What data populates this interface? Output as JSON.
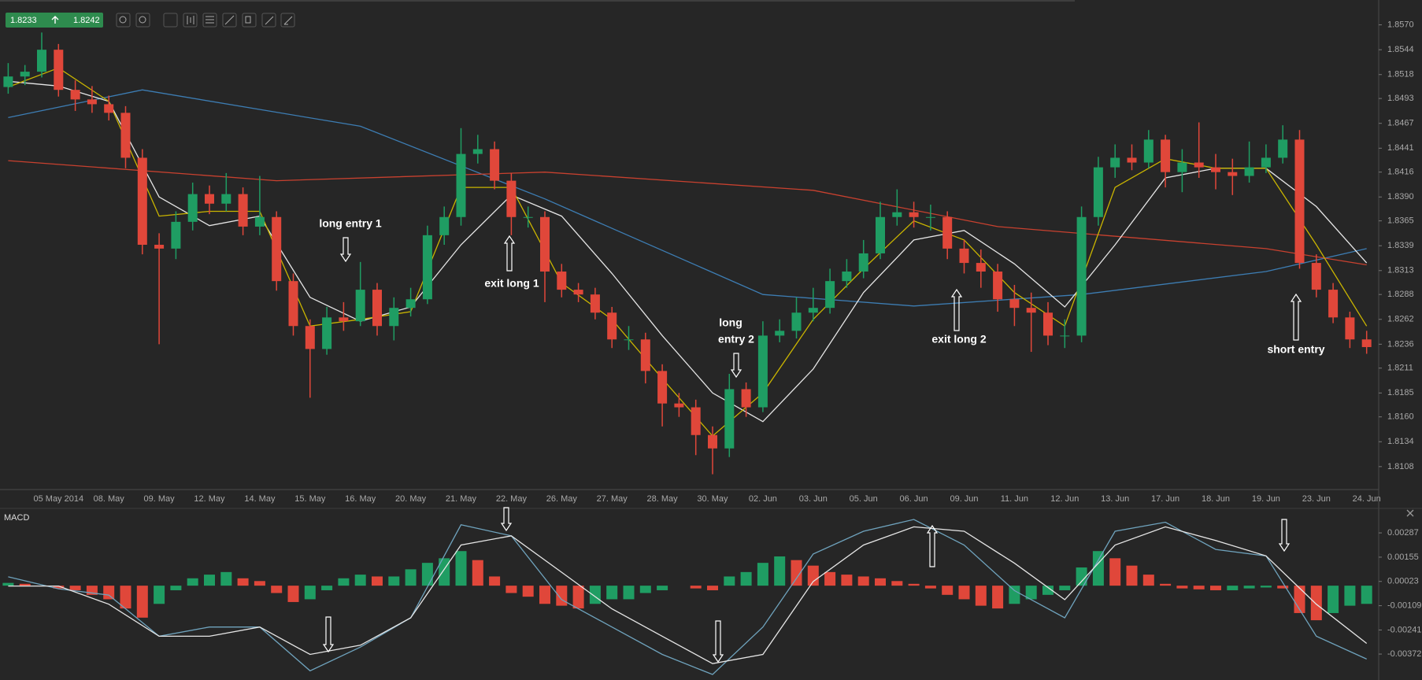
{
  "toolbar": {
    "bid": "1.8233",
    "ask": "1.8242"
  },
  "chart_data": [
    {
      "type": "candlestick",
      "categories": [
        null,
        null,
        null,
        "05 May 2014",
        null,
        null,
        "08. May",
        null,
        null,
        "09. May",
        null,
        null,
        "12. May",
        null,
        null,
        "14. May",
        null,
        null,
        "15. May",
        null,
        null,
        "16. May",
        null,
        null,
        "20. May",
        null,
        null,
        "21. May",
        null,
        null,
        "22. May",
        null,
        null,
        "26. May",
        null,
        null,
        "27. May",
        null,
        null,
        "28. May",
        null,
        null,
        "30. May",
        null,
        null,
        "02. Jun",
        null,
        null,
        "03. Jun",
        null,
        null,
        "05. Jun",
        null,
        null,
        "06. Jun",
        null,
        null,
        "09. Jun",
        null,
        null,
        "11. Jun",
        null,
        null,
        "12. Jun",
        null,
        null,
        "13. Jun",
        null,
        null,
        "17. Jun",
        null,
        null,
        "18. Jun",
        null,
        null,
        "19. Jun",
        null,
        null,
        "23. Jun",
        null,
        null,
        "24. Jun"
      ],
      "ohlc": [
        [
          1.8505,
          1.853,
          1.8498,
          1.8516
        ],
        [
          1.8516,
          1.8528,
          1.8507,
          1.8521
        ],
        [
          1.8521,
          1.8562,
          1.8515,
          1.8544
        ],
        [
          1.8544,
          1.855,
          1.8495,
          1.8502
        ],
        [
          1.8502,
          1.8512,
          1.848,
          1.8492
        ],
        [
          1.8492,
          1.8506,
          1.8478,
          1.8487
        ],
        [
          1.8487,
          1.8496,
          1.847,
          1.8478
        ],
        [
          1.8478,
          1.8485,
          1.842,
          1.8431
        ],
        [
          1.8431,
          1.844,
          1.833,
          1.834
        ],
        [
          1.834,
          1.8352,
          1.8236,
          1.8336
        ],
        [
          1.8336,
          1.8375,
          1.8325,
          1.8364
        ],
        [
          1.8364,
          1.8405,
          1.8355,
          1.8393
        ],
        [
          1.8393,
          1.8402,
          1.8372,
          1.8383
        ],
        [
          1.8383,
          1.8415,
          1.8375,
          1.8393
        ],
        [
          1.8393,
          1.84,
          1.835,
          1.8359
        ],
        [
          1.8359,
          1.8412,
          1.835,
          1.8369
        ],
        [
          1.8369,
          1.8375,
          1.8292,
          1.8302
        ],
        [
          1.8302,
          1.831,
          1.8245,
          1.8255
        ],
        [
          1.8255,
          1.8262,
          1.818,
          1.8231
        ],
        [
          1.8231,
          1.8275,
          1.8225,
          1.8264
        ],
        [
          1.8264,
          1.828,
          1.825,
          1.826
        ],
        [
          1.826,
          1.8322,
          1.8255,
          1.8293
        ],
        [
          1.8293,
          1.83,
          1.8245,
          1.8255
        ],
        [
          1.8255,
          1.8285,
          1.824,
          1.8274
        ],
        [
          1.8274,
          1.8295,
          1.8265,
          1.8283
        ],
        [
          1.8283,
          1.836,
          1.8278,
          1.835
        ],
        [
          1.835,
          1.838,
          1.834,
          1.8369
        ],
        [
          1.8369,
          1.8462,
          1.836,
          1.8435
        ],
        [
          1.8435,
          1.8455,
          1.8425,
          1.844
        ],
        [
          1.844,
          1.8448,
          1.8398,
          1.8407
        ],
        [
          1.8407,
          1.8415,
          1.835,
          1.8369
        ],
        [
          1.8369,
          1.838,
          1.8358,
          1.8369
        ],
        [
          1.8369,
          1.8375,
          1.828,
          1.8312
        ],
        [
          1.8312,
          1.832,
          1.8285,
          1.8293
        ],
        [
          1.8293,
          1.83,
          1.828,
          1.8288
        ],
        [
          1.8288,
          1.8295,
          1.8262,
          1.8269
        ],
        [
          1.8269,
          1.8275,
          1.8232,
          1.8241
        ],
        [
          1.8241,
          1.8255,
          1.823,
          1.8241
        ],
        [
          1.8241,
          1.8248,
          1.8195,
          1.8208
        ],
        [
          1.8208,
          1.8215,
          1.815,
          1.8174
        ],
        [
          1.8174,
          1.8185,
          1.816,
          1.817
        ],
        [
          1.817,
          1.8178,
          1.812,
          1.8141
        ],
        [
          1.8141,
          1.815,
          1.81,
          1.8127
        ],
        [
          1.8127,
          1.8205,
          1.8118,
          1.8189
        ],
        [
          1.8189,
          1.8196,
          1.816,
          1.817
        ],
        [
          1.817,
          1.826,
          1.8165,
          1.8245
        ],
        [
          1.8245,
          1.8262,
          1.8238,
          1.825
        ],
        [
          1.825,
          1.8285,
          1.8242,
          1.8269
        ],
        [
          1.8269,
          1.8295,
          1.826,
          1.8274
        ],
        [
          1.8274,
          1.8315,
          1.8268,
          1.8302
        ],
        [
          1.8302,
          1.8325,
          1.8295,
          1.8312
        ],
        [
          1.8312,
          1.8345,
          1.8305,
          1.8331
        ],
        [
          1.8331,
          1.8385,
          1.8325,
          1.8369
        ],
        [
          1.8369,
          1.8398,
          1.836,
          1.8374
        ],
        [
          1.8374,
          1.8385,
          1.8358,
          1.8369
        ],
        [
          1.8369,
          1.8382,
          1.8355,
          1.8369
        ],
        [
          1.8369,
          1.8375,
          1.8325,
          1.8336
        ],
        [
          1.8336,
          1.8345,
          1.831,
          1.8321
        ],
        [
          1.8321,
          1.8335,
          1.8295,
          1.8312
        ],
        [
          1.8312,
          1.832,
          1.827,
          1.8283
        ],
        [
          1.8283,
          1.8298,
          1.8255,
          1.8274
        ],
        [
          1.8274,
          1.829,
          1.8228,
          1.8269
        ],
        [
          1.8269,
          1.828,
          1.8235,
          1.8245
        ],
        [
          1.8245,
          1.8262,
          1.8232,
          1.8245
        ],
        [
          1.8245,
          1.838,
          1.8238,
          1.8369
        ],
        [
          1.8369,
          1.8432,
          1.836,
          1.8421
        ],
        [
          1.8421,
          1.8445,
          1.841,
          1.8431
        ],
        [
          1.8431,
          1.8445,
          1.8418,
          1.8426
        ],
        [
          1.8426,
          1.846,
          1.842,
          1.845
        ],
        [
          1.845,
          1.8455,
          1.84,
          1.8416
        ],
        [
          1.8416,
          1.844,
          1.8395,
          1.8426
        ],
        [
          1.8426,
          1.8468,
          1.841,
          1.8421
        ],
        [
          1.8421,
          1.8435,
          1.8398,
          1.8416
        ],
        [
          1.8416,
          1.843,
          1.8392,
          1.8412
        ],
        [
          1.8412,
          1.8448,
          1.8405,
          1.8421
        ],
        [
          1.8421,
          1.8445,
          1.8415,
          1.8431
        ],
        [
          1.8431,
          1.8465,
          1.8425,
          1.845
        ],
        [
          1.845,
          1.846,
          1.8315,
          1.8321
        ],
        [
          1.8321,
          1.833,
          1.8285,
          1.8293
        ],
        [
          1.8293,
          1.83,
          1.8258,
          1.8264
        ],
        [
          1.8264,
          1.827,
          1.8232,
          1.8241
        ],
        [
          1.8241,
          1.825,
          1.8226,
          1.8233
        ]
      ],
      "up_color": "#1f9d63",
      "down_color": "#e0473a",
      "ylim": [
        1.8084,
        1.8596
      ],
      "yticks": [
        {
          "value": 1.857,
          "label": "1.8570"
        },
        1.8544,
        1.8518,
        1.8493,
        1.8467,
        1.8441,
        1.8416,
        {
          "value": 1.839,
          "label": "1.8390"
        },
        1.8365,
        1.8339,
        1.8313,
        1.8288,
        1.8262,
        1.8236,
        1.8211,
        1.8185,
        {
          "value": 1.816,
          "label": "1.8160"
        },
        1.8134,
        1.8108
      ],
      "series": [
        {
          "color": "#3d7db3",
          "x": [
            0,
            8,
            21,
            32,
            45,
            54,
            64,
            75,
            81
          ],
          "values": [
            1.8473,
            1.8502,
            1.8464,
            1.8388,
            1.8288,
            1.8276,
            1.8288,
            1.8312,
            1.8336
          ]
        },
        {
          "color": "#c8412f",
          "x": [
            0,
            16,
            32,
            48,
            59,
            75,
            81
          ],
          "values": [
            1.8428,
            1.8407,
            1.8416,
            1.8397,
            1.8359,
            1.8336,
            1.8319
          ]
        },
        {
          "color": "#e6e6e6",
          "x": [
            0,
            3,
            6,
            9,
            12,
            15,
            18,
            21,
            24,
            27,
            30,
            33,
            36,
            39,
            42,
            45,
            48,
            51,
            54,
            57,
            60,
            63,
            66,
            69,
            72,
            75,
            78,
            81
          ],
          "values": [
            1.8511,
            1.8506,
            1.849,
            1.839,
            1.836,
            1.837,
            1.8285,
            1.826,
            1.8275,
            1.834,
            1.8392,
            1.837,
            1.831,
            1.8245,
            1.8185,
            1.8155,
            1.821,
            1.829,
            1.8345,
            1.8355,
            1.832,
            1.8275,
            1.834,
            1.841,
            1.842,
            1.842,
            1.838,
            1.8321
          ]
        },
        {
          "color": "#c9b400",
          "x": [
            0,
            3,
            6,
            9,
            12,
            15,
            18,
            21,
            24,
            27,
            30,
            33,
            36,
            39,
            42,
            45,
            48,
            51,
            54,
            57,
            60,
            63,
            66,
            69,
            72,
            75,
            78,
            81
          ],
          "values": [
            1.8505,
            1.8525,
            1.849,
            1.837,
            1.8375,
            1.8375,
            1.8255,
            1.8262,
            1.827,
            1.84,
            1.84,
            1.83,
            1.8262,
            1.82,
            1.814,
            1.8185,
            1.8262,
            1.8315,
            1.8365,
            1.8345,
            1.829,
            1.8255,
            1.84,
            1.843,
            1.842,
            1.842,
            1.834,
            1.8255
          ]
        }
      ],
      "annotations": [
        "long entry 1",
        "exit long 1",
        "long",
        "entry 2",
        "exit long 2",
        "short entry"
      ]
    },
    {
      "type": "macd",
      "title": "MACD",
      "histogram": [
        0.00015,
        0.0001,
        0,
        -0.00015,
        -0.00025,
        -0.0005,
        -0.00074,
        -0.00124,
        -0.00174,
        -0.00099,
        -0.00025,
        0.0004,
        0.0006,
        0.00074,
        0.0004,
        0.00025,
        -0.0004,
        -0.00089,
        -0.00074,
        -0.00025,
        0.0004,
        0.0006,
        0.0005,
        0.0005,
        0.00089,
        0.00124,
        0.00149,
        0.00188,
        0.00139,
        0.0005,
        -0.0004,
        -0.0006,
        -0.00099,
        -0.00109,
        -0.00124,
        -0.00099,
        -0.00074,
        -0.00074,
        -0.0004,
        -0.00025,
        0,
        -0.00015,
        -0.00025,
        0.0005,
        0.00074,
        0.00124,
        0.00159,
        0.00139,
        0.00109,
        0.00074,
        0.0006,
        0.0005,
        0.0004,
        0.00025,
        0.0001,
        -0.00015,
        -0.0005,
        -0.00074,
        -0.00109,
        -0.00124,
        -0.00099,
        -0.00074,
        -0.0005,
        -0.00025,
        0.00099,
        0.00188,
        0.00149,
        0.00109,
        0.0006,
        0.0001,
        -0.00015,
        -0.0002,
        -0.00025,
        -0.00025,
        -0.00015,
        -0.0001,
        -0.00015,
        -0.00149,
        -0.00188,
        -0.00149,
        -0.00109,
        -0.00099
      ],
      "up_color": "#1f9d63",
      "down_color": "#e0473a",
      "ylim": [
        -0.00513,
        0.0042
      ],
      "yticks": [
        0.00287,
        0.00155,
        0.00023,
        -0.00109,
        -0.00241,
        -0.00372
      ],
      "series": [
        {
          "color": "#6fa3bd",
          "x": [
            0,
            3,
            6,
            9,
            12,
            15,
            18,
            21,
            24,
            27,
            30,
            33,
            36,
            39,
            42,
            45,
            48,
            51,
            54,
            57,
            60,
            63,
            66,
            69,
            72,
            75,
            78,
            81
          ],
          "values": [
            0.00048,
            -0.00017,
            -0.00051,
            -0.00275,
            -0.00225,
            -0.00225,
            -0.00463,
            -0.00334,
            -0.00175,
            0.00331,
            0.00271,
            -0.00076,
            -0.00225,
            -0.00374,
            -0.00483,
            -0.00225,
            0.00172,
            0.00296,
            0.0036,
            0.00221,
            -0.00027,
            -0.00175,
            0.00296,
            0.00345,
            0.00197,
            0.00162,
            -0.00275,
            -0.00399
          ]
        },
        {
          "color": "#e6e6e6",
          "x": [
            0,
            3,
            6,
            9,
            12,
            15,
            18,
            21,
            24,
            27,
            30,
            33,
            36,
            39,
            42,
            45,
            48,
            51,
            54,
            57,
            60,
            63,
            66,
            69,
            72,
            75,
            78,
            81
          ],
          "values": [
            -2e-05,
            -2e-05,
            -0.00101,
            -0.00275,
            -0.00275,
            -0.00225,
            -0.00374,
            -0.00324,
            -0.00175,
            0.00221,
            0.00271,
            0.00073,
            -0.00126,
            -0.00275,
            -0.00424,
            -0.00374,
            0.00023,
            0.00221,
            0.0032,
            0.00296,
            0.00122,
            -0.00076,
            0.00221,
            0.0032,
            0.00246,
            0.00162,
            -0.00101,
            -0.00314
          ]
        }
      ]
    }
  ]
}
